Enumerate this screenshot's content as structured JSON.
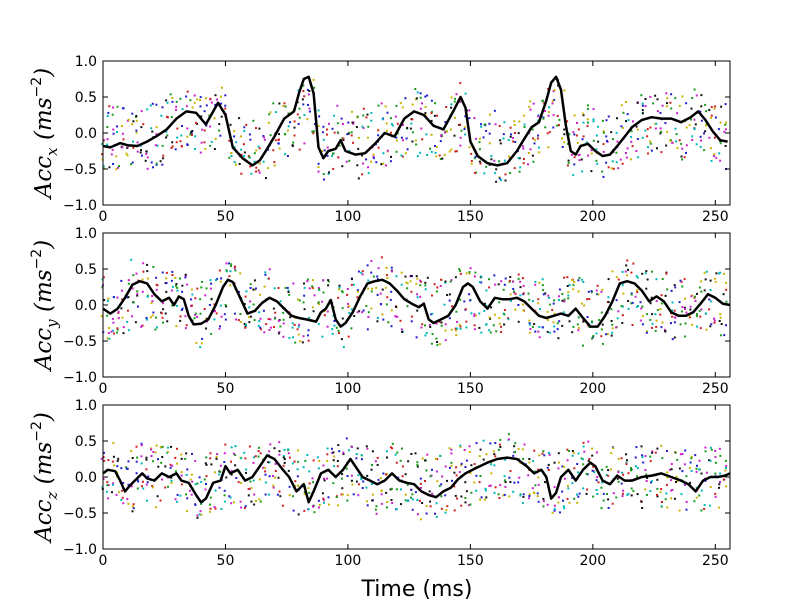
{
  "chart_data": {
    "type": "line",
    "xlabel": "Time (ms)",
    "xlim": [
      0,
      256
    ],
    "x_ticks": [
      "0",
      "50",
      "100",
      "150",
      "200",
      "250"
    ],
    "x_tick_values": [
      0,
      50,
      100,
      150,
      200,
      250
    ],
    "y_ticks": [
      "1.0",
      "0.5",
      "0.0",
      "−0.5",
      "−1.0"
    ],
    "y_tick_values": [
      1.0,
      0.5,
      0.0,
      -0.5,
      -1.0
    ],
    "scatter_colors": [
      "#1f1fd0",
      "#d02020",
      "#1a9a1a",
      "#00b8b8",
      "#cc22cc",
      "#c9b400",
      "#111111"
    ],
    "mean_color": "#000000",
    "panels": [
      {
        "name": "acc-x",
        "ylabel": {
          "base": "Acc",
          "sub": "x",
          "unit_open": "(",
          "unit": "ms",
          "exponent": "−2",
          "unit_close": ")"
        },
        "ylim": [
          -1.0,
          1.0
        ],
        "mean_series": [
          [
            0,
            -0.18
          ],
          [
            3,
            -0.2
          ],
          [
            7,
            -0.14
          ],
          [
            10,
            -0.17
          ],
          [
            14,
            -0.18
          ],
          [
            18,
            -0.12
          ],
          [
            22,
            -0.04
          ],
          [
            26,
            0.05
          ],
          [
            30,
            0.2
          ],
          [
            34,
            0.3
          ],
          [
            38,
            0.28
          ],
          [
            42,
            0.12
          ],
          [
            45,
            0.3
          ],
          [
            47,
            0.42
          ],
          [
            50,
            0.25
          ],
          [
            53,
            -0.2
          ],
          [
            57,
            -0.35
          ],
          [
            61,
            -0.45
          ],
          [
            64,
            -0.38
          ],
          [
            67,
            -0.22
          ],
          [
            70,
            -0.05
          ],
          [
            74,
            0.2
          ],
          [
            78,
            0.3
          ],
          [
            80,
            0.55
          ],
          [
            82,
            0.75
          ],
          [
            84,
            0.78
          ],
          [
            86,
            0.55
          ],
          [
            88,
            -0.2
          ],
          [
            90,
            -0.35
          ],
          [
            92,
            -0.25
          ],
          [
            95,
            -0.22
          ],
          [
            97,
            -0.1
          ],
          [
            99,
            -0.25
          ],
          [
            103,
            -0.3
          ],
          [
            107,
            -0.28
          ],
          [
            111,
            -0.15
          ],
          [
            115,
            0.0
          ],
          [
            119,
            -0.05
          ],
          [
            123,
            0.2
          ],
          [
            127,
            0.3
          ],
          [
            131,
            0.25
          ],
          [
            135,
            0.1
          ],
          [
            139,
            0.05
          ],
          [
            143,
            0.3
          ],
          [
            146,
            0.5
          ],
          [
            148,
            0.35
          ],
          [
            150,
            -0.12
          ],
          [
            153,
            -0.32
          ],
          [
            157,
            -0.42
          ],
          [
            161,
            -0.45
          ],
          [
            165,
            -0.42
          ],
          [
            169,
            -0.25
          ],
          [
            172,
            -0.08
          ],
          [
            175,
            0.08
          ],
          [
            178,
            0.15
          ],
          [
            181,
            0.45
          ],
          [
            183,
            0.7
          ],
          [
            185,
            0.78
          ],
          [
            187,
            0.6
          ],
          [
            189,
            0.1
          ],
          [
            191,
            -0.25
          ],
          [
            193,
            -0.3
          ],
          [
            195,
            -0.18
          ],
          [
            198,
            -0.15
          ],
          [
            201,
            -0.25
          ],
          [
            204,
            -0.32
          ],
          [
            207,
            -0.3
          ],
          [
            210,
            -0.18
          ],
          [
            213,
            -0.05
          ],
          [
            216,
            0.08
          ],
          [
            220,
            0.18
          ],
          [
            224,
            0.22
          ],
          [
            228,
            0.2
          ],
          [
            232,
            0.2
          ],
          [
            236,
            0.15
          ],
          [
            240,
            0.22
          ],
          [
            243,
            0.3
          ],
          [
            246,
            0.18
          ],
          [
            249,
            0.02
          ],
          [
            252,
            -0.1
          ],
          [
            255,
            -0.12
          ]
        ]
      },
      {
        "name": "acc-y",
        "ylabel": {
          "base": "Acc",
          "sub": "y",
          "unit_open": "(",
          "unit": "ms",
          "exponent": "−2",
          "unit_close": ")"
        },
        "ylim": [
          -1.0,
          1.0
        ],
        "mean_series": [
          [
            0,
            -0.05
          ],
          [
            3,
            -0.12
          ],
          [
            6,
            -0.05
          ],
          [
            9,
            0.1
          ],
          [
            12,
            0.28
          ],
          [
            15,
            0.33
          ],
          [
            18,
            0.3
          ],
          [
            21,
            0.15
          ],
          [
            24,
            0.05
          ],
          [
            27,
            0.1
          ],
          [
            29,
            0.0
          ],
          [
            31,
            0.12
          ],
          [
            33,
            0.08
          ],
          [
            35,
            -0.15
          ],
          [
            37,
            -0.27
          ],
          [
            40,
            -0.26
          ],
          [
            43,
            -0.2
          ],
          [
            46,
            0.0
          ],
          [
            49,
            0.25
          ],
          [
            51,
            0.35
          ],
          [
            53,
            0.32
          ],
          [
            56,
            0.1
          ],
          [
            59,
            -0.12
          ],
          [
            62,
            -0.08
          ],
          [
            65,
            0.03
          ],
          [
            68,
            0.1
          ],
          [
            71,
            0.05
          ],
          [
            74,
            -0.05
          ],
          [
            77,
            -0.15
          ],
          [
            80,
            -0.18
          ],
          [
            83,
            -0.2
          ],
          [
            87,
            -0.23
          ],
          [
            89,
            -0.1
          ],
          [
            91,
            -0.05
          ],
          [
            93,
            0.07
          ],
          [
            95,
            -0.2
          ],
          [
            97,
            -0.3
          ],
          [
            99,
            -0.25
          ],
          [
            102,
            -0.1
          ],
          [
            105,
            0.12
          ],
          [
            108,
            0.3
          ],
          [
            111,
            0.33
          ],
          [
            114,
            0.35
          ],
          [
            117,
            0.3
          ],
          [
            120,
            0.2
          ],
          [
            123,
            0.08
          ],
          [
            126,
            0.02
          ],
          [
            129,
            -0.03
          ],
          [
            131,
            0.02
          ],
          [
            133,
            -0.2
          ],
          [
            135,
            -0.25
          ],
          [
            138,
            -0.2
          ],
          [
            141,
            -0.15
          ],
          [
            144,
            0.0
          ],
          [
            147,
            0.25
          ],
          [
            149,
            0.3
          ],
          [
            151,
            0.25
          ],
          [
            154,
            0.05
          ],
          [
            157,
            -0.05
          ],
          [
            160,
            0.1
          ],
          [
            163,
            0.08
          ],
          [
            166,
            0.08
          ],
          [
            169,
            0.1
          ],
          [
            172,
            0.05
          ],
          [
            175,
            -0.05
          ],
          [
            178,
            -0.15
          ],
          [
            181,
            -0.18
          ],
          [
            184,
            -0.15
          ],
          [
            187,
            -0.12
          ],
          [
            190,
            -0.15
          ],
          [
            193,
            -0.05
          ],
          [
            196,
            -0.18
          ],
          [
            199,
            -0.3
          ],
          [
            202,
            -0.3
          ],
          [
            205,
            -0.15
          ],
          [
            208,
            0.05
          ],
          [
            211,
            0.3
          ],
          [
            214,
            0.33
          ],
          [
            217,
            0.3
          ],
          [
            220,
            0.2
          ],
          [
            223,
            0.05
          ],
          [
            226,
            0.12
          ],
          [
            229,
            0.05
          ],
          [
            232,
            -0.1
          ],
          [
            235,
            -0.15
          ],
          [
            238,
            -0.15
          ],
          [
            241,
            -0.1
          ],
          [
            244,
            0.02
          ],
          [
            247,
            0.15
          ],
          [
            250,
            0.1
          ],
          [
            253,
            0.02
          ],
          [
            256,
            0.0
          ]
        ]
      },
      {
        "name": "acc-z",
        "ylabel": {
          "base": "Acc",
          "sub": "z",
          "unit_open": "(",
          "unit": "ms",
          "exponent": "−2",
          "unit_close": ")"
        },
        "ylim": [
          -1.0,
          1.0
        ],
        "mean_series": [
          [
            0,
            0.05
          ],
          [
            2,
            0.1
          ],
          [
            5,
            0.08
          ],
          [
            7,
            -0.05
          ],
          [
            9,
            -0.2
          ],
          [
            11,
            -0.12
          ],
          [
            13,
            -0.05
          ],
          [
            16,
            0.05
          ],
          [
            18,
            -0.02
          ],
          [
            21,
            -0.05
          ],
          [
            24,
            0.05
          ],
          [
            27,
            0.0
          ],
          [
            30,
            0.05
          ],
          [
            32,
            -0.05
          ],
          [
            35,
            -0.08
          ],
          [
            38,
            -0.25
          ],
          [
            40,
            -0.35
          ],
          [
            42,
            -0.3
          ],
          [
            45,
            -0.08
          ],
          [
            48,
            -0.05
          ],
          [
            50,
            0.15
          ],
          [
            52,
            0.05
          ],
          [
            55,
            0.1
          ],
          [
            58,
            -0.05
          ],
          [
            61,
            0.0
          ],
          [
            64,
            0.15
          ],
          [
            67,
            0.3
          ],
          [
            70,
            0.25
          ],
          [
            73,
            0.12
          ],
          [
            76,
            0.0
          ],
          [
            79,
            -0.2
          ],
          [
            82,
            -0.1
          ],
          [
            84,
            -0.35
          ],
          [
            86,
            -0.2
          ],
          [
            89,
            0.05
          ],
          [
            92,
            0.1
          ],
          [
            95,
            0.0
          ],
          [
            98,
            0.1
          ],
          [
            101,
            0.25
          ],
          [
            103,
            0.15
          ],
          [
            106,
            0.0
          ],
          [
            109,
            -0.05
          ],
          [
            112,
            -0.1
          ],
          [
            115,
            -0.05
          ],
          [
            118,
            0.05
          ],
          [
            121,
            -0.05
          ],
          [
            124,
            -0.08
          ],
          [
            127,
            -0.1
          ],
          [
            130,
            -0.2
          ],
          [
            133,
            -0.25
          ],
          [
            136,
            -0.28
          ],
          [
            139,
            -0.2
          ],
          [
            142,
            -0.15
          ],
          [
            145,
            -0.03
          ],
          [
            148,
            0.05
          ],
          [
            152,
            0.12
          ],
          [
            157,
            0.2
          ],
          [
            161,
            0.25
          ],
          [
            165,
            0.27
          ],
          [
            169,
            0.25
          ],
          [
            173,
            0.15
          ],
          [
            176,
            0.05
          ],
          [
            179,
            0.1
          ],
          [
            181,
            0.0
          ],
          [
            183,
            -0.3
          ],
          [
            185,
            -0.22
          ],
          [
            187,
            0.0
          ],
          [
            190,
            0.1
          ],
          [
            193,
            -0.05
          ],
          [
            196,
            0.1
          ],
          [
            199,
            0.2
          ],
          [
            201,
            0.15
          ],
          [
            204,
            -0.05
          ],
          [
            207,
            -0.1
          ],
          [
            210,
            0.02
          ],
          [
            213,
            -0.05
          ],
          [
            216,
            -0.05
          ],
          [
            220,
            0.0
          ],
          [
            224,
            0.02
          ],
          [
            228,
            0.05
          ],
          [
            232,
            0.0
          ],
          [
            236,
            -0.05
          ],
          [
            239,
            -0.1
          ],
          [
            242,
            -0.2
          ],
          [
            245,
            -0.05
          ],
          [
            248,
            0.0
          ],
          [
            251,
            0.0
          ],
          [
            254,
            0.02
          ],
          [
            256,
            0.05
          ]
        ]
      }
    ]
  }
}
